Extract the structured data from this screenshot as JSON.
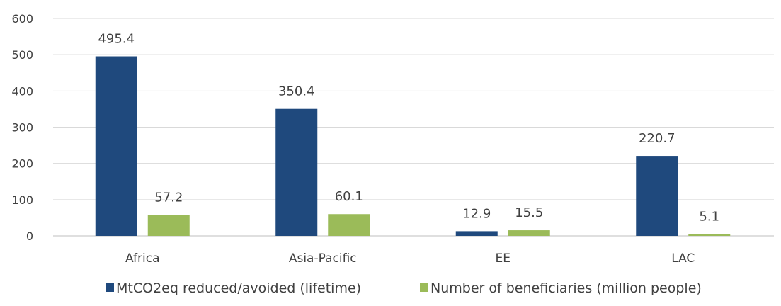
{
  "chart_data": {
    "type": "bar",
    "categories": [
      "Africa",
      "Asia-Pacific",
      "EE",
      "LAC"
    ],
    "series": [
      {
        "name": "MtCO2eq reduced/avoided (lifetime)",
        "values": [
          495.4,
          350.4,
          12.9,
          220.7
        ],
        "labels": [
          "495.4",
          "350.4",
          "12.9",
          "220.7"
        ],
        "color": "#1f497d"
      },
      {
        "name": "Number of beneficiaries (million people)",
        "values": [
          57.2,
          60.1,
          15.5,
          5.1
        ],
        "labels": [
          "57.2",
          "60.1",
          "15.5",
          "5.1"
        ],
        "color": "#9bbb59"
      }
    ],
    "ylim": [
      0,
      600
    ],
    "yticks": [
      "0",
      "100",
      "200",
      "300",
      "400",
      "500",
      "600"
    ],
    "grid": true,
    "legend_position": "bottom",
    "title": "",
    "xlabel": "",
    "ylabel": ""
  }
}
